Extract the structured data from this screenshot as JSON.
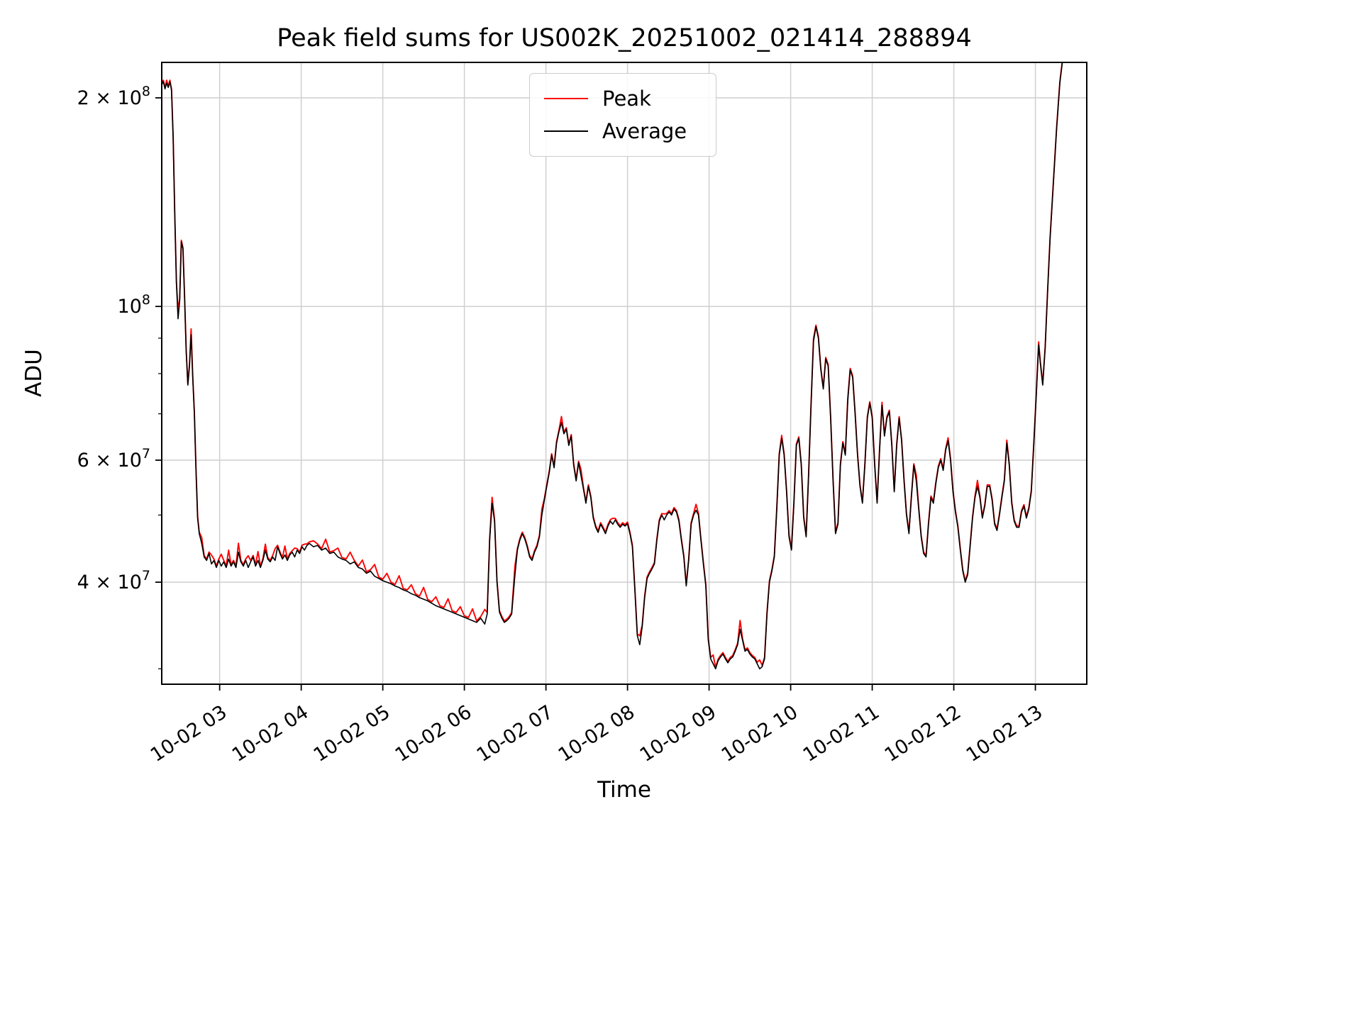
{
  "figure": {
    "title": "Peak field sums for US002K_20251002_021414_288894",
    "xlabel": "Time",
    "ylabel": "ADU"
  },
  "legend": {
    "entries": [
      {
        "label": "Peak",
        "color": "#ff0000"
      },
      {
        "label": "Average",
        "color": "#000000"
      }
    ]
  },
  "chart_data": {
    "type": "line",
    "title": "Peak field sums for US002K_20251002_021414_288894",
    "xlabel": "Time",
    "ylabel": "ADU",
    "yscale": "log",
    "grid": true,
    "legend_position": "upper center",
    "x_unit": "decimal hours on 2025-10-02",
    "value_unit": 10000000,
    "xlim": [
      2.29,
      13.63
    ],
    "ylim": [
      28500000,
      225000000
    ],
    "xticks": [
      {
        "v": 3,
        "label": "10-02 03"
      },
      {
        "v": 4,
        "label": "10-02 04"
      },
      {
        "v": 5,
        "label": "10-02 05"
      },
      {
        "v": 6,
        "label": "10-02 06"
      },
      {
        "v": 7,
        "label": "10-02 07"
      },
      {
        "v": 8,
        "label": "10-02 08"
      },
      {
        "v": 9,
        "label": "10-02 09"
      },
      {
        "v": 10,
        "label": "10-02 10"
      },
      {
        "v": 11,
        "label": "10-02 11"
      },
      {
        "v": 12,
        "label": "10-02 12"
      },
      {
        "v": 13,
        "label": "10-02 13"
      }
    ],
    "yticks": [
      {
        "v": 200000000,
        "base": "2 × 10",
        "exp": "8"
      },
      {
        "v": 100000000,
        "base": "10",
        "exp": "8"
      },
      {
        "v": 60000000,
        "base": "6 × 10",
        "exp": "7"
      },
      {
        "v": 40000000,
        "base": "4 × 10",
        "exp": "7"
      }
    ],
    "y_minor_ticks": [
      30000000,
      50000000,
      70000000,
      80000000,
      90000000
    ],
    "series_names": [
      "Peak",
      "Average"
    ],
    "peak_base_factor": 1.005,
    "peak_spikes": [
      [
        2.35,
        1.01
      ],
      [
        2.49,
        1.03
      ],
      [
        2.65,
        1.02
      ],
      [
        2.78,
        1.02
      ],
      [
        2.9,
        1.03
      ],
      [
        3.02,
        1.04
      ],
      [
        3.11,
        1.03
      ],
      [
        3.23,
        1.03
      ],
      [
        3.35,
        1.04
      ],
      [
        3.47,
        1.03
      ],
      [
        3.56,
        1.02
      ],
      [
        3.68,
        1.04
      ],
      [
        3.8,
        1.03
      ],
      [
        3.92,
        1.03
      ],
      [
        4.04,
        1.02
      ],
      [
        4.15,
        1.02
      ],
      [
        4.3,
        1.03
      ],
      [
        4.45,
        1.03
      ],
      [
        4.6,
        1.04
      ],
      [
        4.75,
        1.03
      ],
      [
        4.9,
        1.04
      ],
      [
        5.05,
        1.03
      ],
      [
        5.2,
        1.04
      ],
      [
        5.35,
        1.03
      ],
      [
        5.5,
        1.04
      ],
      [
        5.65,
        1.03
      ],
      [
        5.8,
        1.04
      ],
      [
        5.95,
        1.03
      ],
      [
        6.1,
        1.04
      ],
      [
        6.25,
        1.05
      ],
      [
        6.34,
        1.02
      ],
      [
        6.62,
        1.03
      ],
      [
        6.95,
        1.02
      ],
      [
        7.19,
        1.02
      ],
      [
        7.43,
        1.02
      ],
      [
        7.82,
        1.02
      ],
      [
        8.15,
        1.03
      ],
      [
        8.45,
        1.02
      ],
      [
        8.84,
        1.02
      ],
      [
        9.05,
        1.03
      ],
      [
        9.38,
        1.03
      ],
      [
        9.62,
        1.03
      ],
      [
        9.89,
        1.01
      ],
      [
        10.28,
        1.01
      ],
      [
        10.7,
        1.01
      ],
      [
        11.12,
        1.01
      ],
      [
        11.54,
        1.02
      ],
      [
        11.93,
        1.01
      ],
      [
        12.29,
        1.02
      ],
      [
        12.65,
        1.01
      ],
      [
        13.04,
        1.01
      ]
    ],
    "points": [
      [
        2.29,
        20.9
      ],
      [
        2.31,
        21.1
      ],
      [
        2.33,
        20.6
      ],
      [
        2.35,
        21.0
      ],
      [
        2.37,
        20.7
      ],
      [
        2.39,
        21.1
      ],
      [
        2.41,
        20.5
      ],
      [
        2.43,
        17.5
      ],
      [
        2.45,
        13.5
      ],
      [
        2.47,
        10.8
      ],
      [
        2.49,
        9.6
      ],
      [
        2.51,
        10.2
      ],
      [
        2.53,
        12.4
      ],
      [
        2.55,
        12.1
      ],
      [
        2.57,
        10.3
      ],
      [
        2.59,
        8.6
      ],
      [
        2.61,
        7.7
      ],
      [
        2.63,
        8.2
      ],
      [
        2.65,
        9.1
      ],
      [
        2.67,
        7.9
      ],
      [
        2.69,
        7.0
      ],
      [
        2.71,
        5.8
      ],
      [
        2.73,
        4.95
      ],
      [
        2.75,
        4.7
      ],
      [
        2.78,
        4.55
      ],
      [
        2.81,
        4.35
      ],
      [
        2.84,
        4.3
      ],
      [
        2.87,
        4.4
      ],
      [
        2.9,
        4.25
      ],
      [
        2.93,
        4.3
      ],
      [
        2.96,
        4.2
      ],
      [
        2.99,
        4.3
      ],
      [
        3.02,
        4.22
      ],
      [
        3.05,
        4.28
      ],
      [
        3.08,
        4.2
      ],
      [
        3.11,
        4.32
      ],
      [
        3.14,
        4.22
      ],
      [
        3.17,
        4.28
      ],
      [
        3.2,
        4.2
      ],
      [
        3.23,
        4.42
      ],
      [
        3.26,
        4.28
      ],
      [
        3.29,
        4.22
      ],
      [
        3.32,
        4.3
      ],
      [
        3.35,
        4.2
      ],
      [
        3.38,
        4.28
      ],
      [
        3.41,
        4.35
      ],
      [
        3.44,
        4.22
      ],
      [
        3.47,
        4.3
      ],
      [
        3.5,
        4.2
      ],
      [
        3.53,
        4.3
      ],
      [
        3.56,
        4.45
      ],
      [
        3.59,
        4.32
      ],
      [
        3.62,
        4.28
      ],
      [
        3.65,
        4.35
      ],
      [
        3.68,
        4.3
      ],
      [
        3.71,
        4.5
      ],
      [
        3.74,
        4.4
      ],
      [
        3.77,
        4.32
      ],
      [
        3.8,
        4.38
      ],
      [
        3.83,
        4.3
      ],
      [
        3.86,
        4.38
      ],
      [
        3.89,
        4.42
      ],
      [
        3.92,
        4.35
      ],
      [
        3.95,
        4.45
      ],
      [
        3.98,
        4.4
      ],
      [
        4.01,
        4.5
      ],
      [
        4.04,
        4.45
      ],
      [
        4.07,
        4.52
      ],
      [
        4.1,
        4.55
      ],
      [
        4.15,
        4.5
      ],
      [
        4.2,
        4.52
      ],
      [
        4.25,
        4.45
      ],
      [
        4.3,
        4.48
      ],
      [
        4.35,
        4.4
      ],
      [
        4.4,
        4.42
      ],
      [
        4.45,
        4.35
      ],
      [
        4.5,
        4.32
      ],
      [
        4.55,
        4.3
      ],
      [
        4.6,
        4.25
      ],
      [
        4.65,
        4.28
      ],
      [
        4.7,
        4.2
      ],
      [
        4.75,
        4.18
      ],
      [
        4.8,
        4.12
      ],
      [
        4.85,
        4.15
      ],
      [
        4.9,
        4.08
      ],
      [
        4.95,
        4.05
      ],
      [
        5.0,
        4.02
      ],
      [
        5.05,
        4.0
      ],
      [
        5.1,
        3.98
      ],
      [
        5.15,
        3.95
      ],
      [
        5.2,
        3.93
      ],
      [
        5.25,
        3.9
      ],
      [
        5.3,
        3.88
      ],
      [
        5.35,
        3.85
      ],
      [
        5.4,
        3.83
      ],
      [
        5.45,
        3.8
      ],
      [
        5.5,
        3.78
      ],
      [
        5.55,
        3.76
      ],
      [
        5.6,
        3.73
      ],
      [
        5.65,
        3.7
      ],
      [
        5.7,
        3.68
      ],
      [
        5.75,
        3.66
      ],
      [
        5.8,
        3.64
      ],
      [
        5.85,
        3.62
      ],
      [
        5.9,
        3.6
      ],
      [
        5.95,
        3.58
      ],
      [
        6.0,
        3.56
      ],
      [
        6.05,
        3.54
      ],
      [
        6.1,
        3.52
      ],
      [
        6.15,
        3.5
      ],
      [
        6.2,
        3.55
      ],
      [
        6.25,
        3.48
      ],
      [
        6.28,
        3.6
      ],
      [
        6.31,
        4.6
      ],
      [
        6.34,
        5.2
      ],
      [
        6.37,
        4.9
      ],
      [
        6.4,
        4.0
      ],
      [
        6.43,
        3.62
      ],
      [
        6.46,
        3.55
      ],
      [
        6.49,
        3.5
      ],
      [
        6.52,
        3.52
      ],
      [
        6.55,
        3.55
      ],
      [
        6.58,
        3.6
      ],
      [
        6.62,
        4.1
      ],
      [
        6.65,
        4.45
      ],
      [
        6.68,
        4.6
      ],
      [
        6.71,
        4.7
      ],
      [
        6.74,
        4.62
      ],
      [
        6.77,
        4.5
      ],
      [
        6.8,
        4.35
      ],
      [
        6.83,
        4.3
      ],
      [
        6.86,
        4.42
      ],
      [
        6.89,
        4.5
      ],
      [
        6.92,
        4.65
      ],
      [
        6.95,
        5.0
      ],
      [
        6.98,
        5.25
      ],
      [
        7.01,
        5.5
      ],
      [
        7.04,
        5.75
      ],
      [
        7.07,
        6.1
      ],
      [
        7.1,
        5.85
      ],
      [
        7.13,
        6.35
      ],
      [
        7.16,
        6.6
      ],
      [
        7.19,
        6.8
      ],
      [
        7.22,
        6.55
      ],
      [
        7.25,
        6.65
      ],
      [
        7.28,
        6.3
      ],
      [
        7.31,
        6.5
      ],
      [
        7.34,
        5.9
      ],
      [
        7.37,
        5.6
      ],
      [
        7.4,
        5.95
      ],
      [
        7.43,
        5.7
      ],
      [
        7.46,
        5.45
      ],
      [
        7.49,
        5.2
      ],
      [
        7.52,
        5.5
      ],
      [
        7.55,
        5.3
      ],
      [
        7.58,
        4.95
      ],
      [
        7.61,
        4.8
      ],
      [
        7.64,
        4.72
      ],
      [
        7.67,
        4.85
      ],
      [
        7.7,
        4.78
      ],
      [
        7.73,
        4.7
      ],
      [
        7.76,
        4.82
      ],
      [
        7.79,
        4.9
      ],
      [
        7.82,
        4.85
      ],
      [
        7.85,
        4.92
      ],
      [
        7.88,
        4.85
      ],
      [
        7.91,
        4.8
      ],
      [
        7.94,
        4.85
      ],
      [
        7.97,
        4.82
      ],
      [
        8.0,
        4.86
      ],
      [
        8.03,
        4.7
      ],
      [
        8.06,
        4.5
      ],
      [
        8.09,
        3.9
      ],
      [
        8.12,
        3.35
      ],
      [
        8.15,
        3.25
      ],
      [
        8.18,
        3.45
      ],
      [
        8.21,
        3.8
      ],
      [
        8.24,
        4.05
      ],
      [
        8.27,
        4.12
      ],
      [
        8.3,
        4.18
      ],
      [
        8.33,
        4.25
      ],
      [
        8.36,
        4.6
      ],
      [
        8.39,
        4.9
      ],
      [
        8.42,
        5.0
      ],
      [
        8.45,
        4.92
      ],
      [
        8.48,
        5.0
      ],
      [
        8.51,
        5.05
      ],
      [
        8.54,
        5.0
      ],
      [
        8.57,
        5.1
      ],
      [
        8.6,
        5.05
      ],
      [
        8.63,
        4.9
      ],
      [
        8.66,
        4.6
      ],
      [
        8.69,
        4.35
      ],
      [
        8.72,
        3.95
      ],
      [
        8.75,
        4.3
      ],
      [
        8.78,
        4.85
      ],
      [
        8.81,
        5.0
      ],
      [
        8.84,
        5.08
      ],
      [
        8.87,
        5.0
      ],
      [
        8.9,
        4.6
      ],
      [
        8.93,
        4.25
      ],
      [
        8.96,
        3.95
      ],
      [
        8.99,
        3.3
      ],
      [
        9.02,
        3.1
      ],
      [
        9.05,
        3.05
      ],
      [
        9.08,
        3.0
      ],
      [
        9.11,
        3.08
      ],
      [
        9.14,
        3.12
      ],
      [
        9.17,
        3.15
      ],
      [
        9.2,
        3.1
      ],
      [
        9.23,
        3.06
      ],
      [
        9.26,
        3.1
      ],
      [
        9.29,
        3.12
      ],
      [
        9.32,
        3.18
      ],
      [
        9.35,
        3.25
      ],
      [
        9.38,
        3.42
      ],
      [
        9.41,
        3.3
      ],
      [
        9.44,
        3.18
      ],
      [
        9.47,
        3.2
      ],
      [
        9.5,
        3.15
      ],
      [
        9.53,
        3.12
      ],
      [
        9.56,
        3.1
      ],
      [
        9.59,
        3.05
      ],
      [
        9.62,
        3.0
      ],
      [
        9.65,
        3.02
      ],
      [
        9.68,
        3.1
      ],
      [
        9.71,
        3.6
      ],
      [
        9.74,
        4.0
      ],
      [
        9.77,
        4.15
      ],
      [
        9.8,
        4.35
      ],
      [
        9.83,
        5.1
      ],
      [
        9.86,
        6.1
      ],
      [
        9.89,
        6.45
      ],
      [
        9.92,
        6.1
      ],
      [
        9.95,
        5.4
      ],
      [
        9.98,
        4.65
      ],
      [
        10.01,
        4.45
      ],
      [
        10.04,
        5.2
      ],
      [
        10.07,
        6.3
      ],
      [
        10.1,
        6.45
      ],
      [
        10.13,
        5.9
      ],
      [
        10.16,
        4.95
      ],
      [
        10.19,
        4.65
      ],
      [
        10.22,
        5.7
      ],
      [
        10.25,
        7.2
      ],
      [
        10.28,
        8.9
      ],
      [
        10.31,
        9.35
      ],
      [
        10.34,
        9.0
      ],
      [
        10.37,
        8.1
      ],
      [
        10.4,
        7.6
      ],
      [
        10.43,
        8.4
      ],
      [
        10.46,
        8.2
      ],
      [
        10.49,
        6.9
      ],
      [
        10.52,
        5.6
      ],
      [
        10.55,
        4.7
      ],
      [
        10.58,
        4.85
      ],
      [
        10.61,
        5.9
      ],
      [
        10.64,
        6.35
      ],
      [
        10.67,
        6.1
      ],
      [
        10.7,
        7.3
      ],
      [
        10.73,
        8.1
      ],
      [
        10.76,
        7.9
      ],
      [
        10.79,
        7.0
      ],
      [
        10.82,
        6.1
      ],
      [
        10.85,
        5.5
      ],
      [
        10.88,
        5.2
      ],
      [
        10.91,
        5.9
      ],
      [
        10.94,
        6.9
      ],
      [
        10.97,
        7.25
      ],
      [
        11.0,
        6.9
      ],
      [
        11.03,
        5.9
      ],
      [
        11.06,
        5.2
      ],
      [
        11.09,
        6.2
      ],
      [
        11.12,
        7.2
      ],
      [
        11.15,
        6.5
      ],
      [
        11.18,
        6.9
      ],
      [
        11.21,
        7.05
      ],
      [
        11.24,
        6.3
      ],
      [
        11.27,
        5.4
      ],
      [
        11.3,
        6.3
      ],
      [
        11.33,
        6.9
      ],
      [
        11.36,
        6.4
      ],
      [
        11.39,
        5.6
      ],
      [
        11.42,
        5.0
      ],
      [
        11.45,
        4.7
      ],
      [
        11.48,
        5.3
      ],
      [
        11.51,
        5.9
      ],
      [
        11.54,
        5.6
      ],
      [
        11.57,
        5.1
      ],
      [
        11.6,
        4.65
      ],
      [
        11.63,
        4.4
      ],
      [
        11.66,
        4.35
      ],
      [
        11.69,
        4.85
      ],
      [
        11.72,
        5.3
      ],
      [
        11.75,
        5.2
      ],
      [
        11.78,
        5.55
      ],
      [
        11.81,
        5.85
      ],
      [
        11.84,
        6.0
      ],
      [
        11.87,
        5.8
      ],
      [
        11.9,
        6.2
      ],
      [
        11.93,
        6.4
      ],
      [
        11.96,
        6.0
      ],
      [
        11.99,
        5.4
      ],
      [
        12.02,
        5.05
      ],
      [
        12.05,
        4.8
      ],
      [
        12.08,
        4.45
      ],
      [
        12.11,
        4.15
      ],
      [
        12.14,
        4.0
      ],
      [
        12.17,
        4.1
      ],
      [
        12.2,
        4.5
      ],
      [
        12.23,
        4.95
      ],
      [
        12.26,
        5.3
      ],
      [
        12.29,
        5.5
      ],
      [
        12.32,
        5.3
      ],
      [
        12.35,
        4.95
      ],
      [
        12.38,
        5.15
      ],
      [
        12.41,
        5.5
      ],
      [
        12.44,
        5.5
      ],
      [
        12.47,
        5.25
      ],
      [
        12.5,
        4.85
      ],
      [
        12.53,
        4.75
      ],
      [
        12.56,
        5.0
      ],
      [
        12.59,
        5.3
      ],
      [
        12.62,
        5.6
      ],
      [
        12.65,
        6.35
      ],
      [
        12.68,
        5.9
      ],
      [
        12.71,
        5.2
      ],
      [
        12.74,
        4.9
      ],
      [
        12.77,
        4.8
      ],
      [
        12.8,
        4.8
      ],
      [
        12.83,
        5.05
      ],
      [
        12.86,
        5.15
      ],
      [
        12.89,
        4.95
      ],
      [
        12.92,
        5.1
      ],
      [
        12.95,
        5.4
      ],
      [
        12.98,
        6.3
      ],
      [
        13.01,
        7.4
      ],
      [
        13.04,
        8.8
      ],
      [
        13.06,
        8.3
      ],
      [
        13.09,
        7.7
      ],
      [
        13.12,
        8.7
      ],
      [
        13.15,
        10.5
      ],
      [
        13.18,
        12.5
      ],
      [
        13.22,
        15.0
      ],
      [
        13.26,
        18.0
      ],
      [
        13.3,
        21.0
      ],
      [
        13.35,
        23.5
      ],
      [
        13.45,
        25.0
      ],
      [
        13.63,
        25.5
      ]
    ]
  }
}
